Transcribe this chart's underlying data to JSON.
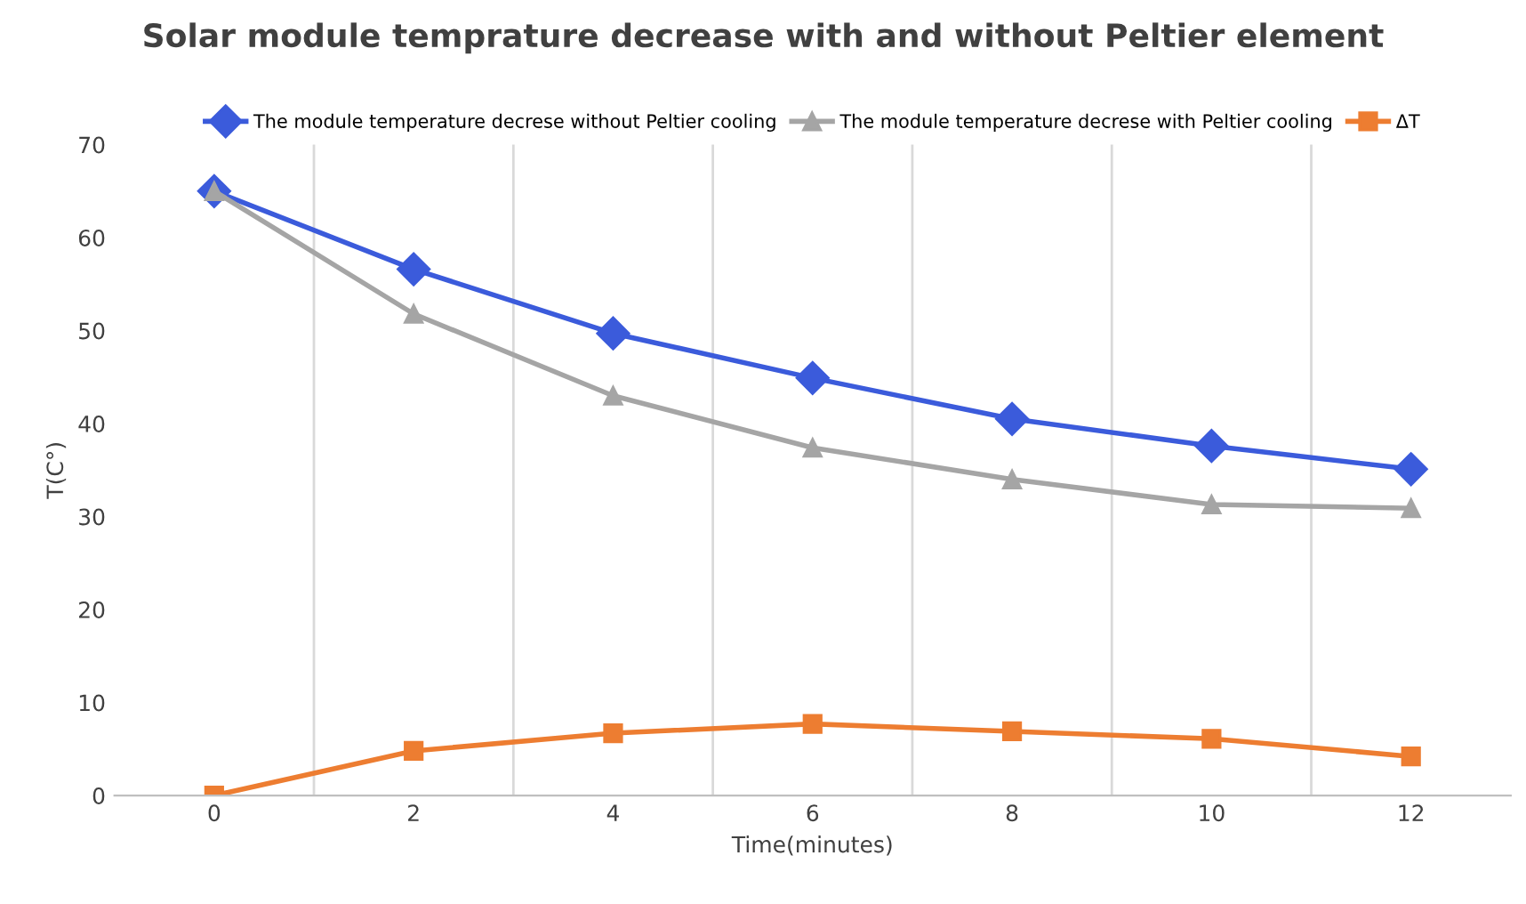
{
  "chart_data": {
    "type": "line",
    "title": "Solar module temprature decrease with and without Peltier element",
    "xlabel": "Time(minutes)",
    "ylabel": "T(C°)",
    "categories": [
      "0",
      "2",
      "4",
      "6",
      "8",
      "10",
      "12"
    ],
    "series": [
      {
        "name": "The module temperature decrese without Peltier cooling",
        "color": "#3b5bdb",
        "marker": "diamond",
        "values": [
          65,
          56.6,
          49.7,
          44.9,
          40.5,
          37.6,
          35.1
        ]
      },
      {
        "name": "The module temperature decrese with Peltier cooling",
        "color": "#a5a5a5",
        "marker": "triangle",
        "values": [
          65,
          51.8,
          43,
          37.4,
          34,
          31.3,
          30.9
        ]
      },
      {
        "name": "ΔT",
        "color": "#ed7d31",
        "marker": "square",
        "values": [
          0,
          4.8,
          6.7,
          7.7,
          6.9,
          6.1,
          4.2
        ]
      }
    ],
    "ylim": [
      0,
      70
    ],
    "yticks": [
      0,
      10,
      20,
      30,
      40,
      50,
      60,
      70
    ],
    "grid": "x",
    "legend": "top",
    "line_style": "solid"
  }
}
